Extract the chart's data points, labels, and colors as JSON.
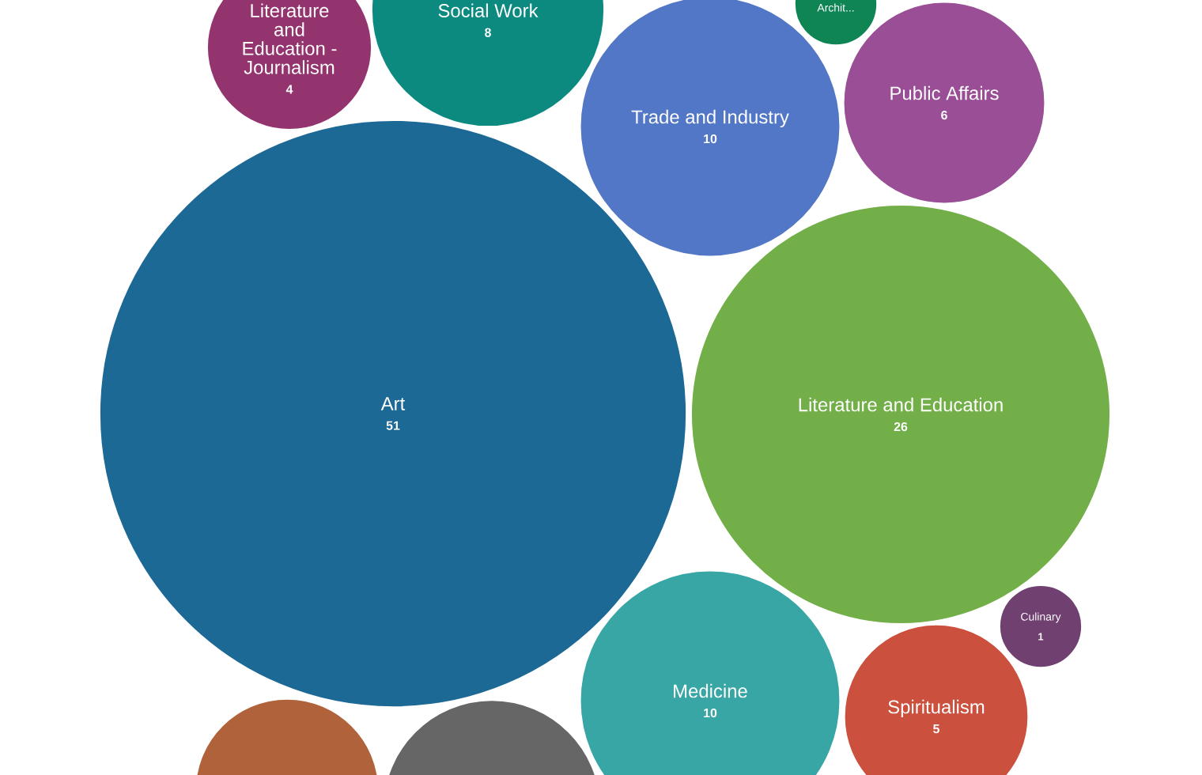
{
  "chart_data": {
    "type": "other",
    "categories": [
      "Literature and Education - Journalism",
      "Social Work",
      "Archit...",
      "Trade and Industry",
      "Public Affairs",
      "Art",
      "Literature and Education",
      "Culinary",
      "Medicine",
      "Spiritualism",
      null,
      null
    ],
    "values": [
      4,
      8,
      null,
      10,
      6,
      51,
      26,
      1,
      10,
      5,
      null,
      null
    ],
    "value_labels": [
      "4",
      "8",
      null,
      "10",
      "6",
      "51",
      "26",
      "1",
      "10",
      "5",
      null,
      null
    ],
    "colors": [
      "#94346e",
      "#0d8a80",
      "#0f8554",
      "#5277c6",
      "#994e95",
      "#1d6996",
      "#73af48",
      "#6f4070",
      "#38a6a5",
      "#cc503e",
      "#b0623a",
      "#666666"
    ]
  }
}
